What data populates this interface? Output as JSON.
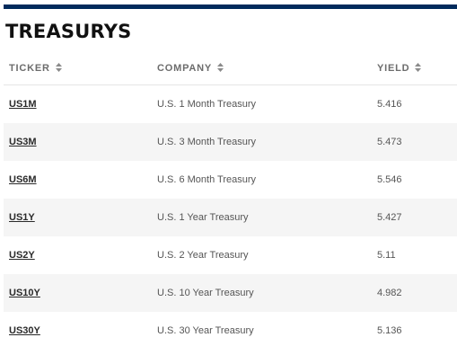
{
  "title": "TREASURYS",
  "colors": {
    "top_bar": "#002a5c",
    "row_alt": "#f5f5f5",
    "header_text": "#6c6c6c"
  },
  "table": {
    "headers": [
      {
        "label": "TICKER",
        "icon": "sort-icon"
      },
      {
        "label": "COMPANY",
        "icon": "sort-icon"
      },
      {
        "label": "YIELD",
        "icon": "sort-icon"
      }
    ],
    "rows": [
      {
        "ticker": "US1M",
        "company": "U.S. 1 Month Treasury",
        "yield": "5.416"
      },
      {
        "ticker": "US3M",
        "company": "U.S. 3 Month Treasury",
        "yield": "5.473"
      },
      {
        "ticker": "US6M",
        "company": "U.S. 6 Month Treasury",
        "yield": "5.546"
      },
      {
        "ticker": "US1Y",
        "company": "U.S. 1 Year Treasury",
        "yield": "5.427"
      },
      {
        "ticker": "US2Y",
        "company": "U.S. 2 Year Treasury",
        "yield": "5.11"
      },
      {
        "ticker": "US10Y",
        "company": "U.S. 10 Year Treasury",
        "yield": "4.982"
      },
      {
        "ticker": "US30Y",
        "company": "U.S. 30 Year Treasury",
        "yield": "5.136"
      }
    ]
  }
}
